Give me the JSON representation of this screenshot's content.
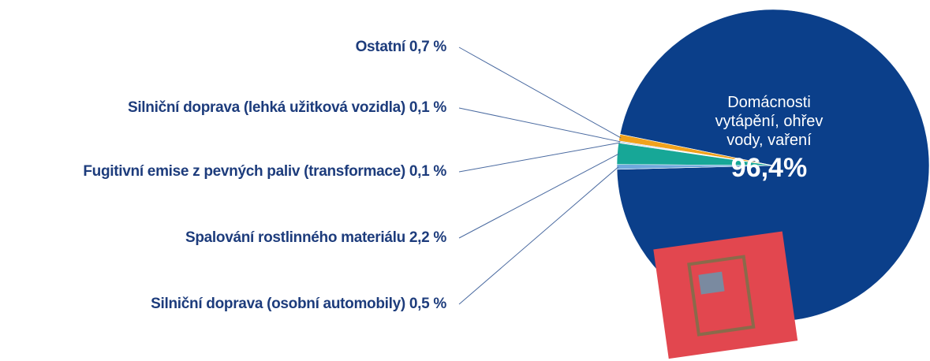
{
  "chart_data": {
    "type": "pie",
    "categories": [
      "Domácnosti vytápění, ohřev vody, vaření",
      "Ostatní",
      "Silniční doprava (lehká užitková vozidla)",
      "Fugitivní emise z pevných paliv (transformace)",
      "Spalování rostlinného materiálu",
      "Silniční doprava (osobní automobily)"
    ],
    "values": [
      96.4,
      0.7,
      0.1,
      0.1,
      2.2,
      0.5
    ],
    "value_labels": [
      "96,4%",
      "0,7 %",
      "0,1 %",
      "0,1 %",
      "2,2 %",
      "0,5 %"
    ],
    "colors": [
      "#0b3f8a",
      "#f0a21c",
      "#9cc0e6",
      "#c9c9c9",
      "#17a797",
      "#6fa8dc"
    ]
  }
}
